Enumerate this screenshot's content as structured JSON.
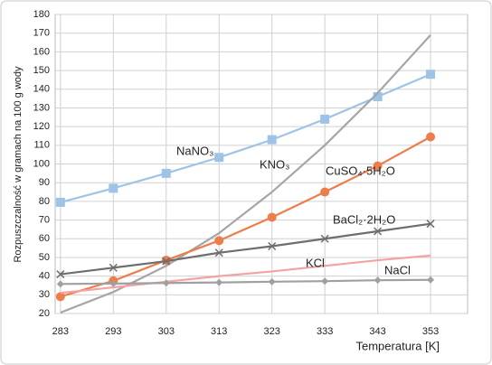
{
  "chart_data": {
    "type": "line",
    "y_label": "Rozpuszczalność  w  gramach na  100 g wody",
    "x_label": "Temperatura [K]",
    "x": [
      283,
      293,
      303,
      313,
      323,
      333,
      343,
      353
    ],
    "xlim": [
      282,
      360
    ],
    "xticks": [
      283,
      293,
      303,
      313,
      323,
      333,
      343,
      353
    ],
    "ylim": [
      20,
      180
    ],
    "yticks": [
      20,
      30,
      40,
      50,
      60,
      70,
      80,
      90,
      100,
      110,
      120,
      130,
      140,
      150,
      160,
      170,
      180
    ],
    "grid": true,
    "series": [
      {
        "name": "NaNO₃",
        "color": "#9dc3e6",
        "marker": "square",
        "values": [
          79.5,
          87,
          95,
          103.5,
          113,
          124,
          136,
          148
        ]
      },
      {
        "name": "KNO₃",
        "color": "#a6a6a6",
        "marker": "none",
        "values": [
          20.5,
          31.5,
          45.5,
          63,
          85,
          110,
          138,
          169
        ]
      },
      {
        "name": "CuSO₄·5H₂O",
        "color": "#ed7d4a",
        "marker": "circle",
        "values": [
          29,
          37.5,
          48.5,
          59,
          71.5,
          85,
          99,
          114.5
        ]
      },
      {
        "name": "BaCl₂·2H₂O",
        "color": "#6e6e6e",
        "marker": "x",
        "values": [
          41,
          44.5,
          48,
          52.5,
          56,
          60,
          64,
          68
        ]
      },
      {
        "name": "KCl",
        "color": "#f4a3a3",
        "marker": "none",
        "values": [
          31,
          34,
          37,
          40,
          42.5,
          45.5,
          48.5,
          51
        ]
      },
      {
        "name": "NaCl",
        "color": "#a0a0a0",
        "marker": "diamond",
        "values": [
          35.8,
          36,
          36.3,
          36.6,
          37,
          37.3,
          37.8,
          38
        ]
      }
    ]
  }
}
